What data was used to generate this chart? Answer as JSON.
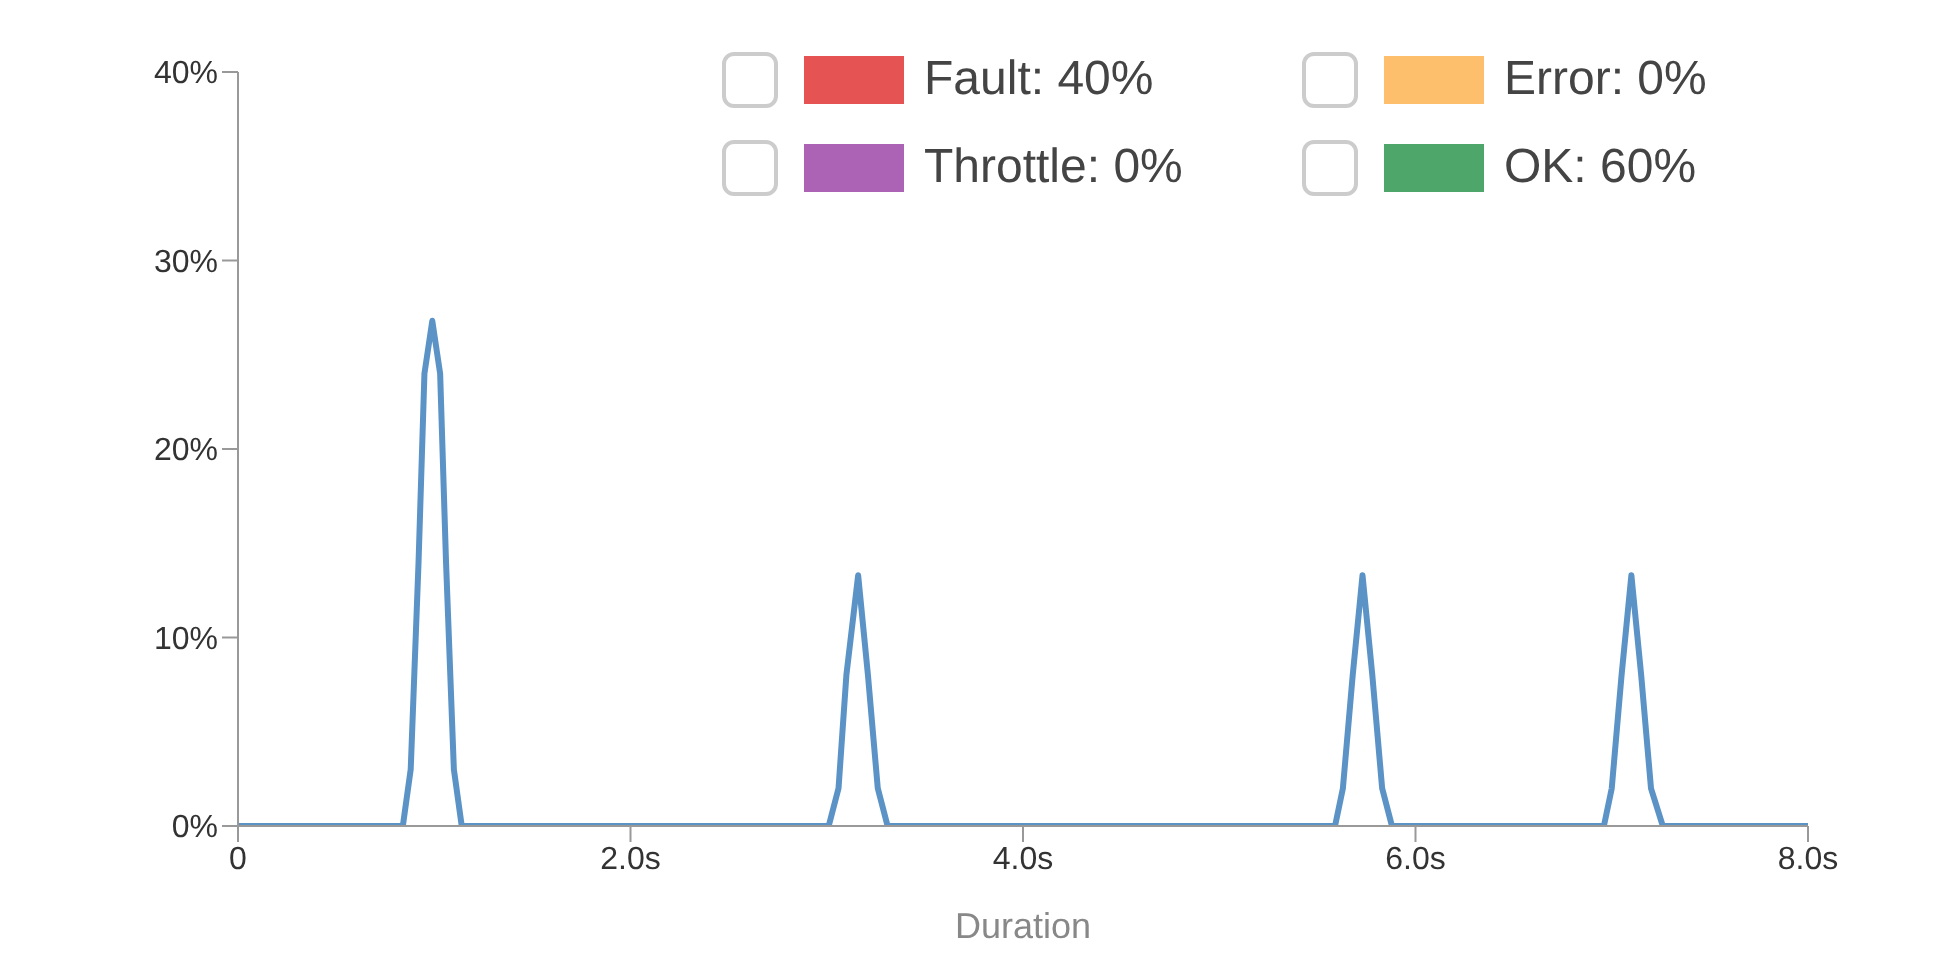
{
  "chart_data": {
    "type": "line",
    "xlabel": "Duration",
    "xlim": [
      0,
      8
    ],
    "xticks": [
      0,
      {
        "value": 2,
        "label": "2.0s"
      },
      {
        "value": 4,
        "label": "4.0s"
      },
      {
        "value": 6,
        "label": "6.0s"
      },
      {
        "value": 8,
        "label": "8.0s"
      }
    ],
    "ylim": [
      0,
      40
    ],
    "yticks": [
      {
        "value": 0,
        "label": "0%"
      },
      {
        "value": 10,
        "label": "10%"
      },
      {
        "value": 20,
        "label": "20%"
      },
      {
        "value": 30,
        "label": "30%"
      },
      {
        "value": 40,
        "label": "40%"
      }
    ],
    "grid": false,
    "marker": "none",
    "line_style": "solid",
    "legend": "top right",
    "series": [
      {
        "color": "#5b93c7",
        "x": [
          0,
          0.84,
          0.88,
          0.92,
          0.95,
          0.99,
          1.03,
          1.06,
          1.1,
          1.14,
          3.01,
          3.06,
          3.1,
          3.16,
          3.21,
          3.26,
          3.31,
          5.59,
          5.63,
          5.68,
          5.73,
          5.78,
          5.83,
          5.88,
          6.96,
          7.0,
          7.05,
          7.1,
          7.15,
          7.2,
          7.26,
          8
        ],
        "values": [
          0,
          0,
          3,
          14,
          24,
          26.8,
          24,
          14,
          3,
          0,
          0,
          2,
          8,
          13.3,
          8,
          2,
          0,
          0,
          2,
          8,
          13.3,
          8,
          2,
          0,
          0,
          2,
          8,
          13.3,
          8,
          2,
          0,
          0
        ]
      },
      {
        "name": "Fault: 40%",
        "color": "#e65353"
      },
      {
        "name": "Error: 0%",
        "color": "#fdbf6b"
      },
      {
        "name": "Throttle: 0%",
        "color": "#ad63b5"
      },
      {
        "name": "OK: 60%",
        "color": "#4fa66b"
      }
    ]
  }
}
